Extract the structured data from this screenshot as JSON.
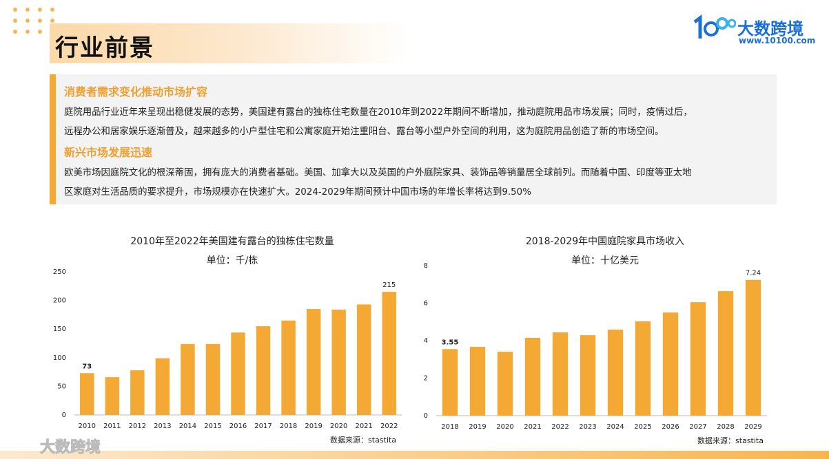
{
  "header": {
    "title": "行业前景",
    "brand": "大数跨境",
    "url": "www.10100.com"
  },
  "sections": [
    {
      "heading": "消费者需求变化推动市场扩容",
      "lines": [
        "庭院用品行业近年来呈现出稳健发展的态势，美国建有露台的独栋住宅数量在2010年到2022年期间不断增加，推动庭院用品市场发展；同时，疫情过后，",
        "远程办公和居家娱乐逐渐普及，越来越多的小户型住宅和公寓家庭开始注重阳台、露台等小型户外空间的利用，这为庭院用品创造了新的市场空间。"
      ]
    },
    {
      "heading": "新兴市场发展迅速",
      "lines": [
        "欧美市场因庭院文化的根深蒂固，拥有庞大的消费者基础。美国、加拿大以及英国的户外庭院家具、装饰品等销量居全球前列。而随着中国、印度等亚太地",
        "区家庭对生活品质的要求提升，市场规模亦在快速扩大。2024-2029年期间预计中国市场的年增长率将达到9.50%"
      ]
    }
  ],
  "chart_data": [
    {
      "type": "bar",
      "title": "2010年至2022年美国建有露台的独栋住宅数量",
      "subtitle": "单位：千/栋",
      "categories": [
        "2010",
        "2011",
        "2012",
        "2013",
        "2014",
        "2015",
        "2016",
        "2017",
        "2018",
        "2019",
        "2020",
        "2021",
        "2022"
      ],
      "values": [
        73,
        66,
        78,
        99,
        124,
        124,
        144,
        155,
        165,
        185,
        184,
        193,
        215
      ],
      "color": "#f5a935",
      "ylim": [
        0,
        250
      ],
      "yticks": [
        0,
        50,
        100,
        150,
        200,
        250
      ],
      "data_labels": "first-last",
      "grid": false,
      "source": "数据来源：stastita"
    },
    {
      "type": "bar",
      "title": "2018-2029年中国庭院家具市场收入",
      "subtitle": "单位：十亿美元",
      "categories": [
        "2018",
        "2019",
        "2020",
        "2021",
        "2022",
        "2023",
        "2024",
        "2025",
        "2026",
        "2027",
        "2028",
        "2029"
      ],
      "values": [
        3.55,
        3.67,
        3.41,
        4.15,
        4.44,
        4.29,
        4.59,
        5.03,
        5.5,
        6.05,
        6.64,
        7.24
      ],
      "color": "#f5a935",
      "ylim": [
        0,
        8
      ],
      "yticks": [
        0,
        2,
        4,
        6,
        8
      ],
      "data_labels": "first-last",
      "grid": false,
      "source": "数据来源：stastita"
    }
  ],
  "watermark": "大数跨境"
}
